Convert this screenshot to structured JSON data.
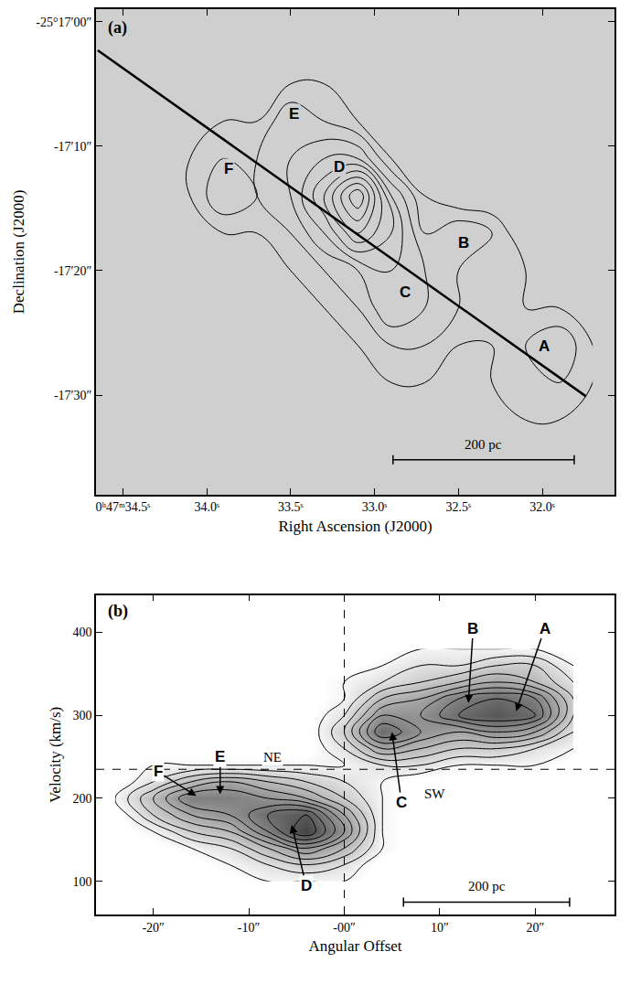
{
  "chart_data": [
    {
      "type": "contour",
      "panel": "(a)",
      "x_label": "Right Ascension (J2000)",
      "y_label": "Declination (J2000)",
      "xlim": [
        34.66,
        31.57
      ],
      "ylim": [
        -38,
        1
      ],
      "xticks": [
        {
          "value": 34.5,
          "label": "0ʰ47ᵐ34.5ˢ"
        },
        {
          "value": 34.0,
          "label": "34.0ˢ"
        },
        {
          "value": 33.5,
          "label": "33.5ˢ"
        },
        {
          "value": 33.0,
          "label": "33.0ˢ"
        },
        {
          "value": 32.5,
          "label": "32.5ˢ"
        },
        {
          "value": 32.0,
          "label": "32.0ˢ"
        }
      ],
      "yticks": [
        {
          "value": 0,
          "label": "-25°17′00″"
        },
        {
          "value": -10,
          "label": "-17′10″"
        },
        {
          "value": -20,
          "label": "-17′20″"
        },
        {
          "value": -30,
          "label": "-17′30″"
        }
      ],
      "grid": false,
      "x": [
        34.3,
        34.1,
        33.9,
        33.7,
        33.5,
        33.3,
        33.1,
        32.9,
        32.7,
        32.5,
        32.3,
        32.1,
        31.9,
        31.7
      ],
      "y": [
        -2,
        -5,
        -8,
        -11,
        -14,
        -17,
        -20,
        -23,
        -26,
        -29,
        -32,
        -35
      ],
      "z": [
        [
          0,
          0,
          0,
          0,
          0,
          0,
          0,
          0,
          0,
          0,
          0,
          0,
          0,
          0
        ],
        [
          0,
          0,
          0,
          0,
          1,
          1,
          0,
          0,
          0,
          0,
          0,
          0,
          0,
          0
        ],
        [
          0,
          0,
          1,
          1,
          3,
          2,
          1,
          0,
          0,
          0,
          0,
          0,
          0,
          0
        ],
        [
          0,
          1,
          2,
          2,
          3,
          4,
          4,
          1,
          0,
          0,
          0,
          0,
          0,
          0
        ],
        [
          0,
          1,
          3,
          2,
          3,
          6,
          10,
          4,
          1,
          0,
          0,
          0,
          0,
          0
        ],
        [
          0,
          0,
          1,
          1,
          2,
          4,
          7,
          5,
          2,
          3,
          2,
          0,
          0,
          0
        ],
        [
          0,
          0,
          0,
          0,
          1,
          2,
          3,
          4,
          3,
          2,
          2,
          1,
          0,
          0
        ],
        [
          0,
          0,
          0,
          0,
          0,
          1,
          2,
          4,
          3,
          2,
          2,
          1,
          1,
          0
        ],
        [
          0,
          0,
          0,
          0,
          0,
          0,
          1,
          2,
          2,
          1,
          1,
          2,
          3,
          1
        ],
        [
          0,
          0,
          0,
          0,
          0,
          0,
          0,
          1,
          1,
          0,
          1,
          2,
          2,
          1
        ],
        [
          0,
          0,
          0,
          0,
          0,
          0,
          0,
          0,
          0,
          0,
          0,
          1,
          1,
          0
        ],
        [
          0,
          0,
          0,
          0,
          0,
          0,
          0,
          0,
          0,
          0,
          0,
          0,
          0,
          0
        ]
      ],
      "levels": [
        1,
        2,
        3,
        4,
        5,
        6,
        7,
        8,
        9,
        10
      ],
      "features": [
        {
          "label": "A",
          "x": 31.99,
          "y": -26.1
        },
        {
          "label": "B",
          "x": 32.47,
          "y": -17.8
        },
        {
          "label": "C",
          "x": 32.82,
          "y": -21.7
        },
        {
          "label": "D",
          "x": 33.21,
          "y": -11.7
        },
        {
          "label": "E",
          "x": 33.48,
          "y": -7.4
        },
        {
          "label": "F",
          "x": 33.87,
          "y": -11.8
        }
      ],
      "cut": {
        "x": [
          34.65,
          31.74
        ],
        "y": [
          -2.3,
          -30.1
        ]
      },
      "scale_bar": {
        "label": "200 pc",
        "x": [
          32.89,
          31.81
        ],
        "y": -35.2
      }
    },
    {
      "type": "contour",
      "panel": "(b)",
      "x_label": "Angular Offset",
      "y_label": "Velocity (km/s)",
      "xlim": [
        -26,
        28.3
      ],
      "ylim": [
        60,
        445
      ],
      "xticks": [
        {
          "value": -20,
          "label": "-20″"
        },
        {
          "value": -10,
          "label": "-10″"
        },
        {
          "value": 0,
          "label": "-00″"
        },
        {
          "value": 10,
          "label": "10″"
        },
        {
          "value": 20,
          "label": "20″"
        }
      ],
      "yticks": [
        100,
        200,
        300,
        400
      ],
      "grid": false,
      "x": [
        -24,
        -20,
        -16,
        -12,
        -8,
        -4,
        0,
        4,
        8,
        12,
        16,
        20,
        24
      ],
      "y": [
        100,
        120,
        140,
        160,
        180,
        200,
        220,
        240,
        260,
        280,
        300,
        320,
        340,
        360,
        380
      ],
      "z": [
        [
          0,
          0,
          0,
          0,
          1,
          1,
          1,
          0,
          0,
          0,
          0,
          0,
          0
        ],
        [
          0,
          0,
          0,
          1,
          2,
          3,
          2,
          0,
          0,
          0,
          0,
          0,
          0
        ],
        [
          0,
          0,
          1,
          2,
          4,
          6,
          4,
          1,
          0,
          0,
          0,
          0,
          0
        ],
        [
          0,
          1,
          3,
          4,
          7,
          10,
          6,
          1,
          0,
          0,
          0,
          0,
          0
        ],
        [
          0,
          3,
          5,
          6,
          8,
          9,
          5,
          1,
          0,
          0,
          0,
          0,
          0
        ],
        [
          1,
          4,
          7,
          7,
          6,
          5,
          3,
          1,
          0,
          0,
          0,
          0,
          0
        ],
        [
          0,
          2,
          4,
          5,
          4,
          3,
          2,
          1,
          0,
          0,
          0,
          0,
          0
        ],
        [
          0,
          1,
          1,
          1,
          1,
          1,
          1,
          2,
          2,
          1,
          1,
          1,
          0
        ],
        [
          0,
          0,
          0,
          0,
          0,
          0,
          2,
          5,
          4,
          3,
          3,
          2,
          1
        ],
        [
          0,
          0,
          0,
          0,
          0,
          0,
          3,
          8,
          6,
          5,
          6,
          5,
          2
        ],
        [
          0,
          0,
          0,
          0,
          0,
          0,
          2,
          6,
          6,
          8,
          9,
          8,
          3
        ],
        [
          0,
          0,
          0,
          0,
          0,
          0,
          1,
          4,
          5,
          7,
          8,
          7,
          3
        ],
        [
          0,
          0,
          0,
          0,
          0,
          0,
          1,
          2,
          3,
          4,
          5,
          4,
          2
        ],
        [
          0,
          0,
          0,
          0,
          0,
          0,
          0,
          1,
          2,
          2,
          3,
          3,
          1
        ],
        [
          0,
          0,
          0,
          0,
          0,
          0,
          0,
          0,
          1,
          1,
          1,
          1,
          0
        ]
      ],
      "levels": [
        1,
        2,
        3,
        4,
        5,
        6,
        7,
        8,
        9,
        10
      ],
      "features": [
        {
          "label": "A",
          "x": 18,
          "y": 305,
          "label_x": 21,
          "label_y": 405
        },
        {
          "label": "B",
          "x": 13,
          "y": 315,
          "label_x": 13.5,
          "label_y": 405
        },
        {
          "label": "C",
          "x": 5,
          "y": 280,
          "label_x": 6,
          "label_y": 195
        },
        {
          "label": "D",
          "x": -5.5,
          "y": 168,
          "label_x": -4,
          "label_y": 95
        },
        {
          "label": "E",
          "x": -13,
          "y": 205,
          "label_x": -13,
          "label_y": 250
        },
        {
          "label": "F",
          "x": -15.5,
          "y": 203,
          "label_x": -19.5,
          "label_y": 232
        }
      ],
      "texts": [
        {
          "text": "NE",
          "x": -7.5,
          "y": 250
        },
        {
          "text": "SW",
          "x": 9.5,
          "y": 205
        }
      ],
      "vline": 0,
      "hline": 235,
      "scale_bar": {
        "label": "200 pc",
        "x": [
          6.2,
          23.6
        ],
        "y": 75
      }
    }
  ]
}
